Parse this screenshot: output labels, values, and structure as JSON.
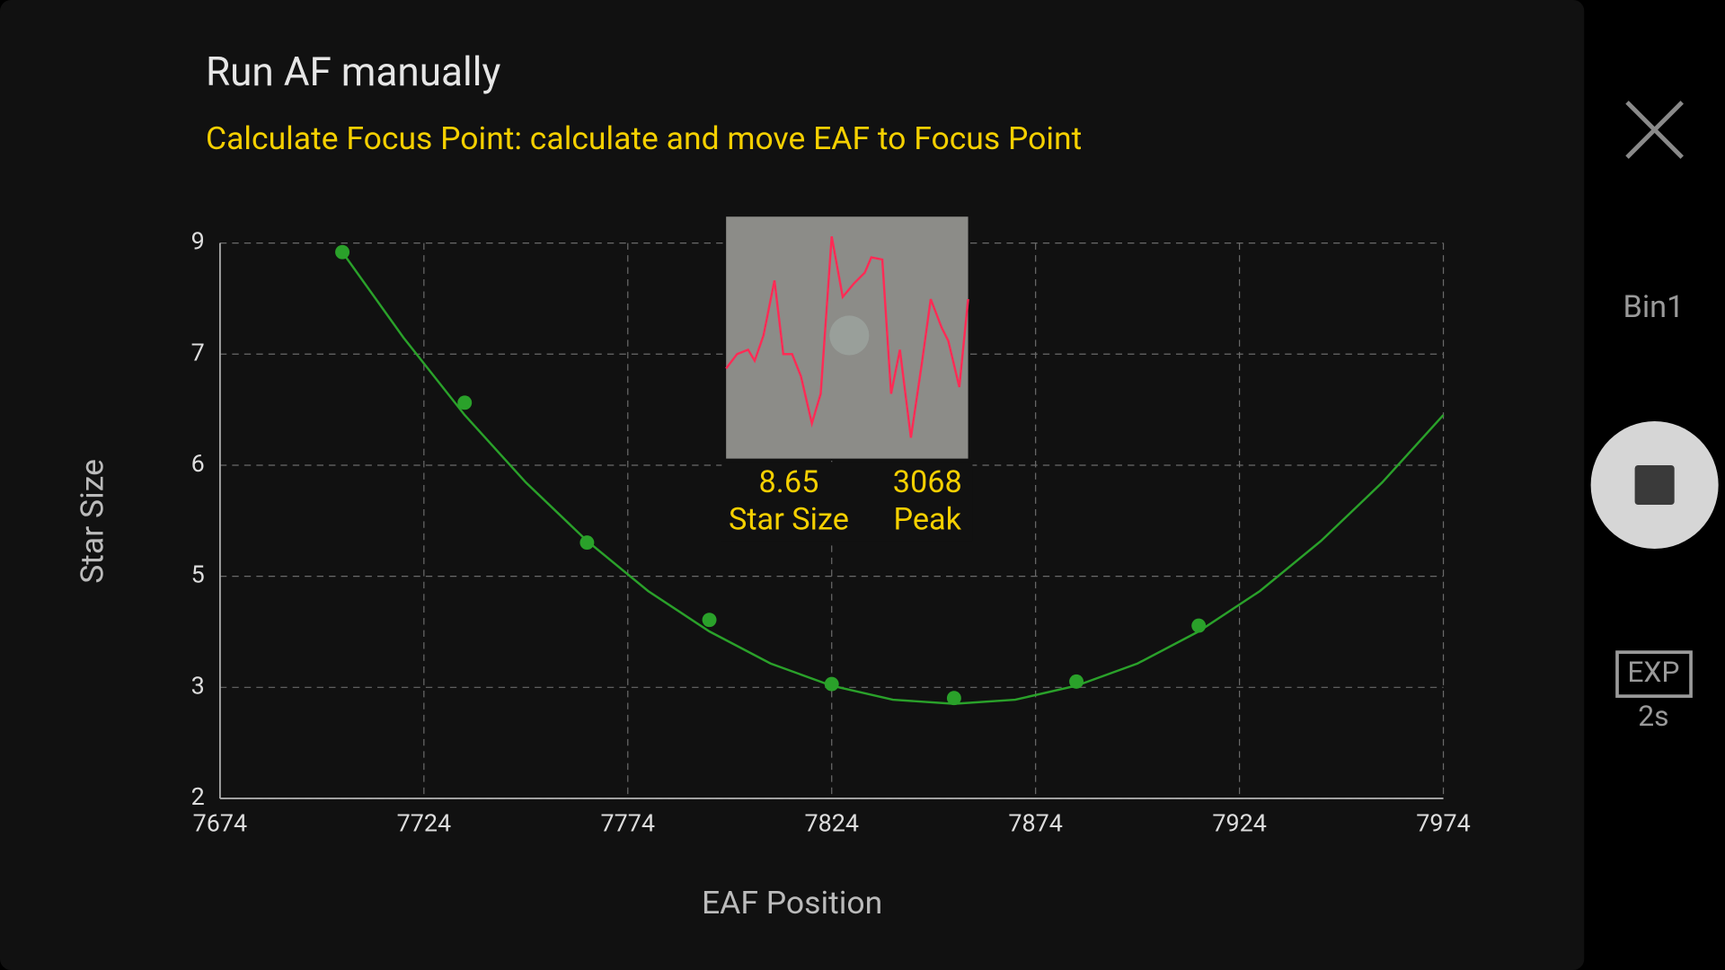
{
  "header": {
    "title": "Run AF manually",
    "subtitle": "Calculate Focus Point: calculate and move EAF to Focus Point"
  },
  "star_info": {
    "star_size": "8.65",
    "star_size_label": "Star Size",
    "peak": "3068",
    "peak_label": "Peak"
  },
  "side_panel": {
    "bin": "Bin1",
    "exp_label": "EXP",
    "exp_value": "2s"
  },
  "chart_data": {
    "type": "scatter",
    "x_label": "EAF Position",
    "y_label": "Star Size",
    "x": [
      7704,
      7734,
      7764,
      7794,
      7824,
      7854,
      7884,
      7914
    ],
    "values": [
      8.69,
      6.86,
      5.16,
      4.22,
      3.44,
      3.27,
      3.47,
      4.15
    ],
    "color": "#2aa12a",
    "fit_curve": {
      "x": [
        7704,
        7719,
        7734,
        7749,
        7764,
        7779,
        7794,
        7809,
        7824,
        7839,
        7854,
        7869,
        7884,
        7899,
        7914,
        7929,
        7944,
        7959,
        7974
      ],
      "values": [
        8.69,
        7.65,
        6.71,
        5.89,
        5.18,
        4.57,
        4.08,
        3.69,
        3.42,
        3.25,
        3.2,
        3.25,
        3.42,
        3.69,
        4.08,
        4.57,
        5.18,
        5.89,
        6.71
      ]
    },
    "xlim": [
      7674,
      7974
    ],
    "xticks": [
      7674,
      7724,
      7774,
      7824,
      7874,
      7924,
      7974
    ],
    "ylim": [
      2.05,
      8.8
    ],
    "yticks": [
      {
        "value": 2.05,
        "label": "2"
      },
      {
        "value": 3.4,
        "label": "3"
      },
      {
        "value": 4.75,
        "label": "5"
      },
      {
        "value": 6.1,
        "label": "6"
      },
      {
        "value": 7.45,
        "label": "7"
      },
      {
        "value": 8.8,
        "label": "9"
      }
    ],
    "grid": true
  }
}
